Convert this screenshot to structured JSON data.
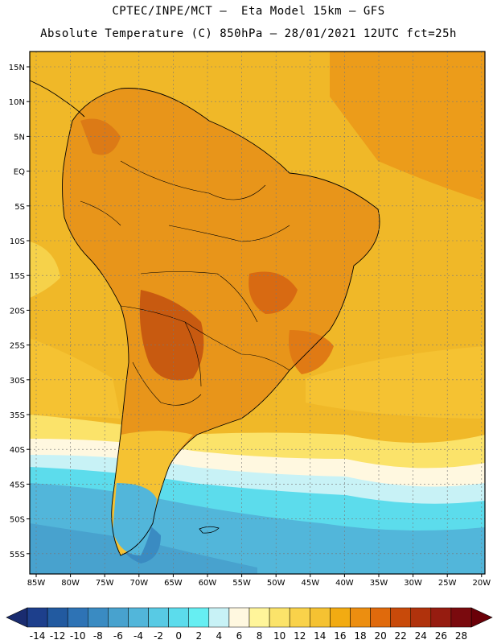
{
  "header": {
    "title_line1": "CPTEC/INPE/MCT –  Eta Model 15km – GFS",
    "title_line2": "Absolute Temperature (C) 850hPa – 28/01/2021 12UTC fct=25h"
  },
  "map": {
    "lat_labels": [
      "15N",
      "10N",
      "5N",
      "EQ",
      "5S",
      "10S",
      "15S",
      "20S",
      "25S",
      "30S",
      "35S",
      "40S",
      "45S",
      "50S",
      "55S"
    ],
    "lon_labels": [
      "85W",
      "80W",
      "75W",
      "70W",
      "65W",
      "60W",
      "55W",
      "50W",
      "45W",
      "40W",
      "35W",
      "30W",
      "25W",
      "20W"
    ],
    "ocean_color": "#f0b828",
    "land_color": "#e8951a"
  },
  "colorbar": {
    "labels": [
      "-14",
      "-12",
      "-10",
      "-8",
      "-6",
      "-4",
      "-2",
      "0",
      "2",
      "4",
      "6",
      "8",
      "10",
      "12",
      "14",
      "16",
      "18",
      "20",
      "22",
      "24",
      "26",
      "28"
    ],
    "colors": [
      "#1d3f8c",
      "#225aa0",
      "#2e73b5",
      "#3a8bc2",
      "#48a2ce",
      "#52b6da",
      "#58cae4",
      "#5cdcec",
      "#66eef2",
      "#c8f2f6",
      "#fff8e0",
      "#fff59a",
      "#fbe36a",
      "#f9d24a",
      "#f5c232",
      "#f2ab12",
      "#ec8e10",
      "#e06a0c",
      "#c84a0a",
      "#b0320c",
      "#961c10",
      "#7a0a0e"
    ],
    "left_arrow_color": "#1a2c70",
    "right_arrow_color": "#6a0008"
  }
}
